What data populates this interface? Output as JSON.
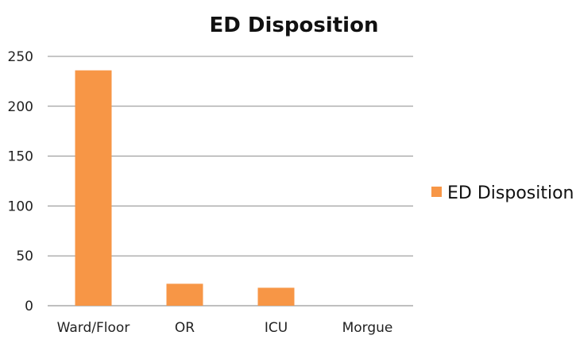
{
  "chart_data": {
    "type": "bar",
    "title": "ED Disposition",
    "xlabel": "",
    "ylabel": "",
    "categories": [
      "Ward/Floor",
      "OR",
      "ICU",
      "Morgue"
    ],
    "series": [
      {
        "name": "ED Disposition",
        "values": [
          236,
          22,
          18,
          0
        ],
        "color": "#F79646"
      }
    ],
    "ylim": [
      0,
      250
    ],
    "yticks": [
      0,
      50,
      100,
      150,
      200,
      250
    ],
    "grid": true,
    "legend_position": "right"
  }
}
